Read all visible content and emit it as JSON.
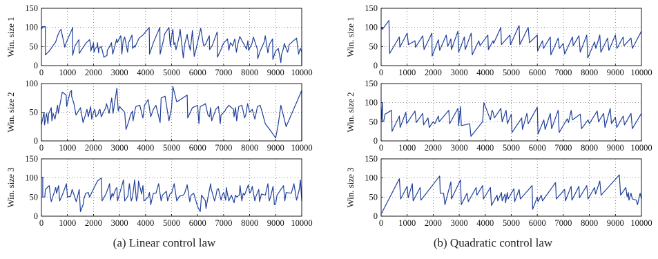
{
  "captions": [
    "(a) Linear control law",
    "(b) Quadratic control law"
  ],
  "chart_data": [
    {
      "type": "line",
      "panel": "a1",
      "ylabel": "Win. size 1",
      "xlim": [
        0,
        10000
      ],
      "ylim": [
        0,
        150
      ],
      "xticks": [
        "0",
        "1000",
        "2000",
        "3000",
        "4000",
        "5000",
        "6000",
        "7000",
        "8000",
        "9000",
        "10000"
      ],
      "yticks": [
        "0",
        "50",
        "100",
        "150"
      ],
      "grid": true,
      "color": "#1f3f9a",
      "x": [
        0,
        40,
        40,
        150,
        150,
        300,
        320,
        550,
        620,
        700,
        750,
        900,
        940,
        1190,
        1200,
        1200,
        1280,
        1320,
        1440,
        1450,
        1700,
        1850,
        1900,
        1900,
        1950,
        1960,
        2000,
        2020,
        2070,
        2140,
        2150,
        2200,
        2210,
        2300,
        2400,
        2520,
        2530,
        2660,
        2690,
        2740,
        2890,
        2910,
        3050,
        3090,
        3140,
        3200,
        3310,
        3350,
        3480,
        3500,
        3580,
        3590,
        3750,
        3900,
        4140,
        4150,
        4150,
        4300,
        4550,
        4560,
        4700,
        4730,
        4900,
        4950,
        5030,
        5050,
        5090,
        5130,
        5170,
        5270,
        5330,
        5450,
        5500,
        5600,
        5620,
        5720,
        5800,
        5870,
        5930,
        6030,
        6120,
        6230,
        6300,
        6450,
        6460,
        6560,
        6750,
        6760,
        6900,
        6990,
        7150,
        7200,
        7260,
        7350,
        7430,
        7490,
        7540,
        7620,
        7880,
        7930,
        7960,
        8090,
        8140,
        8300,
        8310,
        8390,
        8560,
        8600,
        8700,
        8760,
        8880,
        8890,
        8980,
        9000,
        9100,
        9200,
        9220,
        9300,
        9330,
        9460,
        9520,
        9800,
        9880,
        9920,
        9950,
        10000,
        10000
      ],
      "y": [
        95,
        100,
        102,
        102,
        28,
        38,
        40,
        62,
        78,
        90,
        95,
        48,
        58,
        98,
        100,
        27,
        50,
        55,
        68,
        32,
        58,
        68,
        50,
        38,
        50,
        47,
        60,
        35,
        45,
        50,
        60,
        33,
        45,
        50,
        22,
        27,
        40,
        55,
        60,
        30,
        70,
        60,
        78,
        30,
        65,
        75,
        35,
        60,
        80,
        45,
        52,
        48,
        72,
        80,
        100,
        50,
        30,
        60,
        100,
        30,
        70,
        82,
        100,
        50,
        88,
        95,
        55,
        60,
        42,
        70,
        95,
        20,
        55,
        82,
        70,
        40,
        92,
        24,
        40,
        70,
        98,
        52,
        55,
        78,
        42,
        52,
        88,
        22,
        42,
        58,
        70,
        40,
        60,
        52,
        70,
        35,
        55,
        76,
        43,
        65,
        40,
        58,
        75,
        42,
        18,
        36,
        62,
        78,
        33,
        56,
        70,
        16,
        35,
        38,
        45,
        8,
        28,
        45,
        58,
        35,
        55,
        72,
        30,
        40,
        45,
        35,
        0
      ]
    },
    {
      "type": "line",
      "panel": "a2",
      "ylabel": "Win. size 2",
      "xlim": [
        0,
        10000
      ],
      "ylim": [
        0,
        100
      ],
      "xticks": [
        "0",
        "1000",
        "2000",
        "3000",
        "4000",
        "5000",
        "6000",
        "7000",
        "8000",
        "9000",
        "10000"
      ],
      "yticks": [
        "0",
        "50",
        "100"
      ],
      "grid": true,
      "color": "#1f3f9a",
      "x": [
        0,
        100,
        120,
        200,
        250,
        280,
        380,
        400,
        450,
        520,
        620,
        650,
        800,
        950,
        970,
        1100,
        1160,
        1160,
        1250,
        1330,
        1500,
        1600,
        1690,
        1750,
        1800,
        1890,
        1930,
        2000,
        2050,
        2090,
        2190,
        2200,
        2250,
        2300,
        2470,
        2500,
        2600,
        2700,
        2750,
        2900,
        2950,
        3000,
        3200,
        3250,
        3360,
        3420,
        3500,
        3520,
        3600,
        3630,
        3780,
        3900,
        3960,
        4100,
        4200,
        4300,
        4400,
        4560,
        4600,
        4750,
        4900,
        5000,
        5050,
        5200,
        5600,
        5620,
        5800,
        6000,
        6050,
        6100,
        6200,
        6300,
        6400,
        6460,
        6500,
        6540,
        6700,
        6800,
        6870,
        6900,
        7050,
        7080,
        7200,
        7380,
        7400,
        7460,
        7500,
        7580,
        7700,
        7750,
        7800,
        7850,
        7920,
        8000,
        8100,
        8200,
        8300,
        8400,
        8450,
        8600,
        8800,
        9000,
        9100,
        9200,
        9400,
        9500,
        10000,
        10000
      ],
      "y": [
        28,
        50,
        28,
        48,
        30,
        48,
        58,
        35,
        48,
        38,
        62,
        48,
        85,
        80,
        60,
        85,
        88,
        78,
        65,
        45,
        58,
        32,
        45,
        55,
        42,
        60,
        38,
        50,
        55,
        42,
        48,
        52,
        55,
        42,
        58,
        65,
        48,
        75,
        48,
        92,
        52,
        60,
        50,
        20,
        35,
        45,
        52,
        35,
        55,
        60,
        62,
        40,
        62,
        72,
        42,
        55,
        62,
        32,
        75,
        78,
        35,
        58,
        95,
        68,
        80,
        40,
        58,
        62,
        30,
        60,
        62,
        65,
        45,
        42,
        58,
        35,
        55,
        60,
        30,
        45,
        52,
        55,
        62,
        55,
        42,
        58,
        35,
        60,
        62,
        52,
        40,
        45,
        65,
        50,
        55,
        38,
        60,
        62,
        55,
        30,
        18,
        5,
        30,
        62,
        25,
        35,
        88,
        0
      ]
    },
    {
      "type": "line",
      "panel": "a3",
      "ylabel": "Win. size 3",
      "xlim": [
        0,
        10000
      ],
      "ylim": [
        0,
        150
      ],
      "xticks": [
        "0",
        "1000",
        "2000",
        "3000",
        "4000",
        "5000",
        "6000",
        "7000",
        "8000",
        "9000",
        "10000"
      ],
      "yticks": [
        "0",
        "50",
        "100",
        "150"
      ],
      "grid": true,
      "color": "#1f3f9a",
      "x": [
        0,
        50,
        50,
        130,
        150,
        300,
        350,
        380,
        550,
        580,
        660,
        700,
        800,
        960,
        1000,
        1120,
        1180,
        1340,
        1400,
        1450,
        1500,
        1600,
        1630,
        1700,
        1800,
        1850,
        2150,
        2300,
        2330,
        2450,
        2480,
        2620,
        2650,
        2720,
        2750,
        2850,
        2900,
        2920,
        3000,
        3150,
        3200,
        3320,
        3380,
        3450,
        3500,
        3580,
        3650,
        3700,
        3730,
        3850,
        3900,
        3940,
        4100,
        4150,
        4200,
        4300,
        4400,
        4500,
        4600,
        4650,
        4800,
        4850,
        4950,
        5000,
        5100,
        5200,
        5300,
        5450,
        5500,
        5600,
        5700,
        5750,
        5850,
        6000,
        6100,
        6150,
        6300,
        6320,
        6400,
        6500,
        6520,
        6650,
        6700,
        6750,
        6800,
        6900,
        6950,
        7000,
        7080,
        7100,
        7200,
        7300,
        7400,
        7450,
        7500,
        7600,
        7630,
        7700,
        7750,
        7800,
        7950,
        8000,
        8050,
        8100,
        8200,
        8230,
        8350,
        8380,
        8450,
        8600,
        8700,
        8750,
        8800,
        8900,
        8950,
        9000,
        9050,
        9300,
        9350,
        9400,
        9600,
        9700,
        9800,
        9900,
        9950,
        10000,
        10000
      ],
      "y": [
        100,
        102,
        50,
        50,
        70,
        80,
        50,
        38,
        75,
        60,
        80,
        40,
        55,
        85,
        50,
        52,
        70,
        38,
        55,
        70,
        12,
        30,
        45,
        60,
        62,
        50,
        92,
        100,
        40,
        55,
        58,
        85,
        42,
        60,
        52,
        70,
        75,
        40,
        58,
        95,
        40,
        52,
        85,
        40,
        50,
        95,
        40,
        55,
        92,
        58,
        80,
        40,
        50,
        62,
        30,
        60,
        60,
        85,
        40,
        55,
        65,
        40,
        60,
        60,
        85,
        40,
        52,
        55,
        60,
        82,
        38,
        55,
        60,
        25,
        12,
        55,
        40,
        20,
        50,
        85,
        72,
        40,
        52,
        70,
        72,
        42,
        55,
        62,
        42,
        75,
        40,
        55,
        35,
        55,
        50,
        55,
        80,
        40,
        60,
        55,
        82,
        60,
        65,
        78,
        40,
        50,
        70,
        38,
        58,
        55,
        85,
        40,
        50,
        78,
        30,
        32,
        55,
        80,
        40,
        62,
        60,
        85,
        42,
        68,
        95,
        40,
        62
      ]
    },
    {
      "type": "line",
      "panel": "b1",
      "ylabel": "Win. size 1",
      "xlim": [
        0,
        10000
      ],
      "ylim": [
        0,
        150
      ],
      "xticks": [
        "0",
        "1000",
        "2000",
        "3000",
        "4000",
        "5000",
        "6000",
        "7000",
        "8000",
        "9000",
        "10000"
      ],
      "yticks": [
        "0",
        "50",
        "100",
        "150"
      ],
      "grid": true,
      "color": "#1f3f9a",
      "x": [
        0,
        50,
        50,
        300,
        330,
        700,
        720,
        1000,
        1050,
        1300,
        1320,
        1600,
        1650,
        1950,
        1960,
        2200,
        2250,
        2500,
        2560,
        2680,
        2700,
        2950,
        2980,
        3200,
        3230,
        3460,
        3500,
        3750,
        3800,
        4100,
        4120,
        4300,
        4320,
        4600,
        4620,
        4950,
        4970,
        5300,
        5330,
        5650,
        5700,
        6000,
        6010,
        6200,
        6240,
        6500,
        6520,
        6800,
        6850,
        7000,
        7050,
        7350,
        7380,
        7600,
        7650,
        7900,
        7940,
        8200,
        8250,
        8400,
        8440,
        8700,
        8750,
        9000,
        9060,
        9300,
        9330,
        9600,
        9650,
        10000
      ],
      "y": [
        95,
        100,
        95,
        118,
        32,
        75,
        48,
        85,
        55,
        65,
        48,
        78,
        42,
        85,
        25,
        68,
        40,
        80,
        50,
        70,
        42,
        90,
        35,
        75,
        42,
        85,
        28,
        65,
        52,
        80,
        42,
        65,
        58,
        100,
        55,
        80,
        55,
        105,
        55,
        100,
        60,
        80,
        38,
        65,
        45,
        75,
        28,
        72,
        45,
        58,
        30,
        75,
        52,
        78,
        35,
        80,
        20,
        62,
        45,
        80,
        35,
        72,
        40,
        80,
        45,
        75,
        52,
        72,
        45,
        90
      ]
    },
    {
      "type": "line",
      "panel": "b2",
      "ylabel": "Win. size 2",
      "xlim": [
        0,
        10000
      ],
      "ylim": [
        0,
        150
      ],
      "xticks": [
        "0",
        "1000",
        "2000",
        "3000",
        "4000",
        "5000",
        "6000",
        "7000",
        "8000",
        "9000",
        "10000"
      ],
      "yticks": [
        "0",
        "50",
        "100",
        "150"
      ],
      "grid": true,
      "color": "#1f3f9a",
      "x": [
        0,
        50,
        50,
        100,
        150,
        400,
        420,
        700,
        730,
        950,
        980,
        1300,
        1350,
        1600,
        1630,
        1800,
        1850,
        2000,
        2060,
        2200,
        2230,
        2600,
        2630,
        2950,
        2980,
        3050,
        3080,
        3400,
        3450,
        3900,
        3950,
        4200,
        4260,
        4300,
        4350,
        4600,
        4650,
        4800,
        4850,
        5000,
        5030,
        5400,
        5430,
        5600,
        5650,
        6000,
        6030,
        6250,
        6300,
        6500,
        6550,
        6800,
        6840,
        7150,
        7200,
        7300,
        7350,
        7650,
        7700,
        7950,
        8000,
        8300,
        8350,
        8550,
        8600,
        8800,
        8850,
        9000,
        9050,
        9300,
        9350,
        9600,
        9650,
        10000
      ],
      "y": [
        50,
        100,
        50,
        52,
        70,
        80,
        25,
        65,
        35,
        75,
        45,
        78,
        48,
        72,
        42,
        60,
        35,
        50,
        45,
        65,
        50,
        80,
        45,
        85,
        40,
        90,
        40,
        45,
        12,
        50,
        100,
        55,
        80,
        75,
        60,
        85,
        50,
        80,
        45,
        70,
        22,
        60,
        30,
        72,
        45,
        88,
        18,
        55,
        30,
        72,
        32,
        80,
        22,
        58,
        48,
        80,
        55,
        70,
        32,
        55,
        45,
        78,
        50,
        72,
        35,
        85,
        45,
        62,
        35,
        65,
        42,
        72,
        32,
        72
      ]
    },
    {
      "type": "line",
      "panel": "b3",
      "ylabel": "Win. size 3",
      "xlim": [
        0,
        10000
      ],
      "ylim": [
        0,
        150
      ],
      "xticks": [
        "0",
        "1000",
        "2000",
        "3000",
        "4000",
        "5000",
        "6000",
        "7000",
        "8000",
        "9000",
        "10000"
      ],
      "yticks": [
        "0",
        "50",
        "100",
        "150"
      ],
      "grid": true,
      "color": "#1f3f9a",
      "x": [
        0,
        50,
        50,
        700,
        750,
        1000,
        1040,
        1200,
        1230,
        1500,
        1530,
        2250,
        2270,
        2400,
        2450,
        2680,
        2700,
        3050,
        3080,
        3300,
        3350,
        3650,
        3680,
        3900,
        3930,
        4200,
        4240,
        4450,
        4480,
        4620,
        4650,
        4760,
        4780,
        4850,
        4880,
        5100,
        5130,
        5300,
        5350,
        5800,
        5820,
        6000,
        6030,
        6150,
        6200,
        6700,
        6730,
        7050,
        7080,
        7300,
        7330,
        7600,
        7620,
        7900,
        7950,
        8200,
        8240,
        8400,
        8450,
        9150,
        9200,
        9400,
        9450,
        9500,
        9520,
        9600,
        9650,
        9800,
        9850,
        9950,
        10000
      ],
      "y": [
        8,
        10,
        12,
        98,
        45,
        78,
        48,
        85,
        40,
        75,
        42,
        105,
        60,
        60,
        30,
        90,
        45,
        95,
        30,
        60,
        38,
        75,
        55,
        80,
        45,
        75,
        28,
        55,
        40,
        62,
        40,
        58,
        35,
        62,
        45,
        72,
        38,
        70,
        45,
        80,
        18,
        50,
        38,
        55,
        40,
        88,
        45,
        70,
        40,
        78,
        42,
        78,
        48,
        80,
        45,
        75,
        58,
        92,
        55,
        108,
        55,
        75,
        50,
        62,
        42,
        60,
        45,
        42,
        30,
        60,
        45
      ]
    }
  ]
}
